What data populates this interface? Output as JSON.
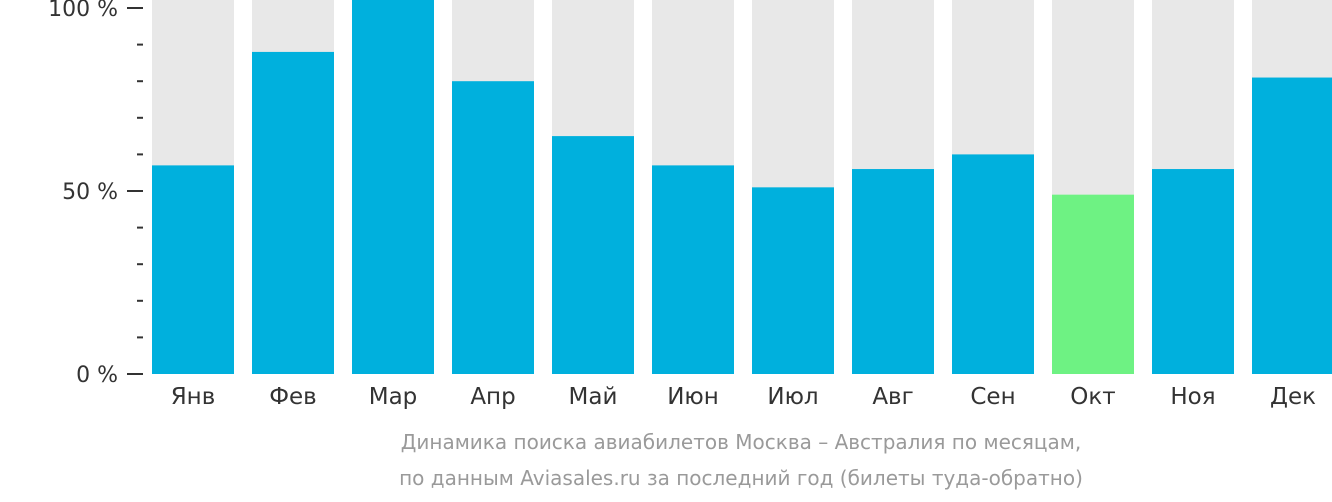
{
  "chart_data": {
    "type": "bar",
    "categories": [
      "Янв",
      "Фев",
      "Мар",
      "Апр",
      "Май",
      "Июн",
      "Июл",
      "Авг",
      "Сен",
      "Окт",
      "Ноя",
      "Дек"
    ],
    "values": [
      57,
      88,
      100,
      80,
      65,
      57,
      51,
      56,
      60,
      49,
      56,
      81
    ],
    "highlight_index": 9,
    "ylim": [
      0,
      100
    ],
    "yticks": [
      {
        "value": 0,
        "label": "0 %"
      },
      {
        "value": 50,
        "label": "50 %"
      },
      {
        "value": 100,
        "label": "100 %"
      }
    ],
    "minor_tick_step": 10,
    "grid": false,
    "colors": {
      "bar": "#00b0dd",
      "highlight": "#6ef283",
      "background_bar": "#e8e8e8",
      "axis_text": "#333333"
    }
  },
  "caption": {
    "line1": "Динамика поиска авиабилетов Москва – Австралия по месяцам,",
    "line2": "по данным Aviasales.ru за последний год (билеты туда-обратно)"
  }
}
